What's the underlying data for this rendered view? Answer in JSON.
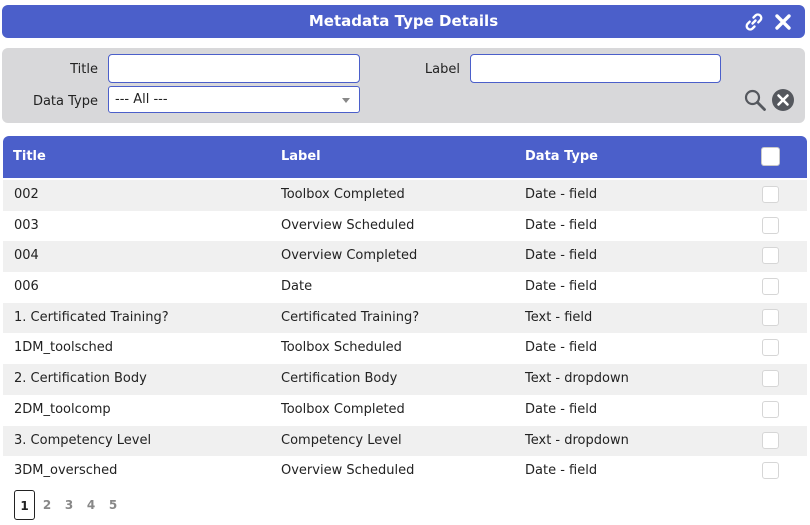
{
  "window": {
    "title": "Metadata Type Details",
    "link_icon": "link-icon",
    "close_icon": "close-icon"
  },
  "filters": {
    "title_label": "Title",
    "title_value": "",
    "label_label": "Label",
    "label_value": "",
    "data_type_label": "Data Type",
    "data_type_value": "--- All ---",
    "search_icon": "search-icon",
    "clear_icon": "clear-icon"
  },
  "table": {
    "headers": {
      "title": "Title",
      "label": "Label",
      "data_type": "Data Type"
    },
    "rows": [
      {
        "title": "002",
        "label": "Toolbox Completed",
        "data_type": "Date - field"
      },
      {
        "title": "003",
        "label": "Overview Scheduled",
        "data_type": "Date - field"
      },
      {
        "title": "004",
        "label": "Overview Completed",
        "data_type": "Date - field"
      },
      {
        "title": "006",
        "label": "Date",
        "data_type": "Date - field"
      },
      {
        "title": "1. Certificated Training?",
        "label": "Certificated Training?",
        "data_type": "Text - field"
      },
      {
        "title": "1DM_toolsched",
        "label": "Toolbox Scheduled",
        "data_type": "Date - field"
      },
      {
        "title": "2. Certification Body",
        "label": "Certification Body",
        "data_type": "Text - dropdown"
      },
      {
        "title": "2DM_toolcomp",
        "label": "Toolbox Completed",
        "data_type": "Date - field"
      },
      {
        "title": "3. Competency Level",
        "label": "Competency Level",
        "data_type": "Text - dropdown"
      },
      {
        "title": "3DM_oversched",
        "label": "Overview Scheduled",
        "data_type": "Date - field"
      }
    ]
  },
  "pagination": {
    "pages": [
      "1",
      "2",
      "3",
      "4",
      "5"
    ],
    "current": "1"
  },
  "colors": {
    "accent": "#4b5fca",
    "filter_bg": "#d8d8da",
    "row_alt": "#f0f0f0"
  }
}
